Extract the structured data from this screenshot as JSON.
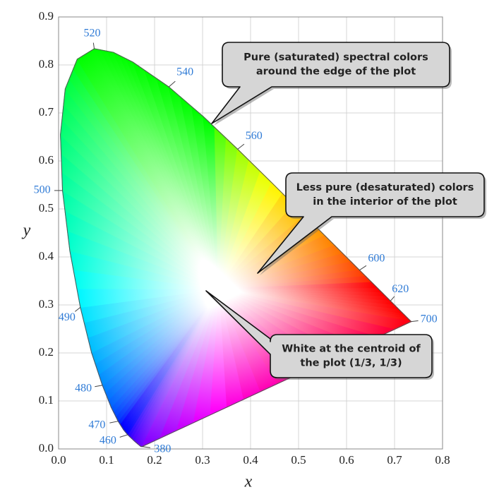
{
  "chart_data": {
    "type": "chromaticity",
    "xlabel": "x",
    "ylabel": "y",
    "xlim": [
      0,
      0.8
    ],
    "ylim": [
      0,
      0.9
    ],
    "xticks": [
      {
        "value": 0,
        "label": "0.0"
      },
      0.1,
      0.2,
      0.3,
      0.4,
      0.5,
      0.6,
      0.7,
      0.8
    ],
    "yticks": [
      {
        "value": 0,
        "label": "0.0"
      },
      0.1,
      0.2,
      0.3,
      0.4,
      0.5,
      0.6,
      0.7,
      0.8,
      0.9
    ],
    "grid": true,
    "locus": {
      "x": [
        0.1741,
        0.1714,
        0.1644,
        0.1566,
        0.144,
        0.1355,
        0.1241,
        0.1096,
        0.0913,
        0.0687,
        0.0454,
        0.0235,
        0.0082,
        0.0039,
        0.0139,
        0.0389,
        0.0743,
        0.1142,
        0.1547,
        0.2296,
        0.3016,
        0.3731,
        0.4441,
        0.5125,
        0.5752,
        0.627,
        0.6658,
        0.6915,
        0.719,
        0.7347
      ],
      "y": [
        0.005,
        0.0051,
        0.0109,
        0.0177,
        0.0297,
        0.0399,
        0.0578,
        0.0868,
        0.1327,
        0.2007,
        0.295,
        0.4127,
        0.5384,
        0.6548,
        0.7502,
        0.812,
        0.8338,
        0.8262,
        0.8059,
        0.7543,
        0.6923,
        0.6245,
        0.5547,
        0.4866,
        0.4242,
        0.3725,
        0.334,
        0.3083,
        0.2809,
        0.2653
      ]
    },
    "wavelength_labels": [
      {
        "label": 380,
        "x": 0.1741,
        "y": 0.005
      },
      {
        "label": 460,
        "x": 0.144,
        "y": 0.0297
      },
      {
        "label": 470,
        "x": 0.1241,
        "y": 0.0578
      },
      {
        "label": 480,
        "x": 0.0913,
        "y": 0.1327
      },
      {
        "label": 490,
        "x": 0.0454,
        "y": 0.295
      },
      {
        "label": 500,
        "x": 0.0082,
        "y": 0.5384
      },
      {
        "label": 520,
        "x": 0.0743,
        "y": 0.8338
      },
      {
        "label": 540,
        "x": 0.2296,
        "y": 0.7543
      },
      {
        "label": 560,
        "x": 0.3731,
        "y": 0.6245
      },
      {
        "label": 600,
        "x": 0.627,
        "y": 0.3725
      },
      {
        "label": 620,
        "x": 0.6915,
        "y": 0.3083
      },
      {
        "label": 700,
        "x": 0.7347,
        "y": 0.2653
      }
    ],
    "annotations": [
      {
        "lines": [
          "Pure (saturated) spectral colors",
          "around the edge of the plot"
        ]
      },
      {
        "lines": [
          "Less pure (desaturated) colors",
          "in the interior of the plot"
        ]
      },
      {
        "lines": [
          "White at the centroid of",
          "the plot (1/3, 1/3)"
        ]
      }
    ]
  }
}
